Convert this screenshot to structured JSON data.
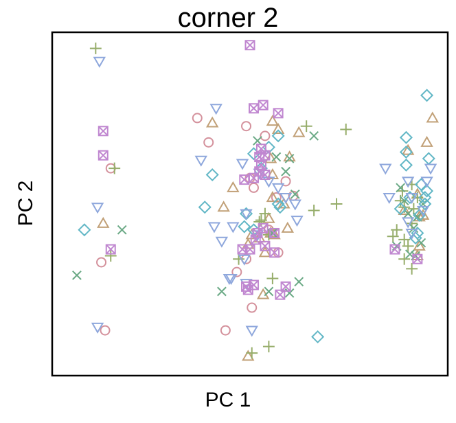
{
  "chart_data": {
    "type": "scatter",
    "title": "corner 2",
    "xlabel": "PC 1",
    "ylabel": "PC 2",
    "xlim": [
      0,
      100
    ],
    "ylim": [
      0,
      100
    ],
    "grid": false,
    "legend": "none",
    "axis_ticks": false,
    "colors": {
      "circle": "#d4919c",
      "triangle": "#c1a077",
      "plus": "#96ad6a",
      "cross": "#6aa985",
      "diamond": "#62b7c6",
      "nabla": "#8ea7dc",
      "boxtimes": "#c087d0"
    },
    "series": [
      {
        "marker": "circle",
        "points": [
          [
            10.5,
            32
          ],
          [
            13,
            61
          ],
          [
            11.5,
            11
          ],
          [
            36,
            76.5
          ],
          [
            39,
            69
          ],
          [
            49,
            74
          ],
          [
            54,
            71
          ],
          [
            50,
            58
          ],
          [
            49,
            33
          ],
          [
            46.5,
            29
          ],
          [
            51,
            55
          ],
          [
            57,
            52
          ],
          [
            55,
            42
          ],
          [
            59.5,
            57
          ],
          [
            61.5,
            52.5
          ],
          [
            57.5,
            35
          ],
          [
            50.5,
            18
          ],
          [
            43.5,
            11
          ]
        ]
      },
      {
        "marker": "triangle",
        "points": [
          [
            11,
            44
          ],
          [
            40,
            75
          ],
          [
            56,
            59
          ],
          [
            55.5,
            64
          ],
          [
            56,
            75.5
          ],
          [
            57.5,
            73
          ],
          [
            63,
            72
          ],
          [
            56,
            52
          ],
          [
            60.5,
            64.5
          ],
          [
            59,
            50
          ],
          [
            55,
            45.5
          ],
          [
            60,
            42.5
          ],
          [
            56,
            41
          ],
          [
            56.5,
            40.5
          ],
          [
            50.5,
            40.5
          ],
          [
            49.5,
            37.5
          ],
          [
            52.5,
            39.5
          ],
          [
            54,
            35
          ],
          [
            55.5,
            41
          ],
          [
            53.5,
            22
          ],
          [
            49.5,
            3
          ],
          [
            45.5,
            55
          ],
          [
            43,
            49
          ],
          [
            92,
            66.5
          ],
          [
            97,
            69
          ],
          [
            98.5,
            76.5
          ],
          [
            94.5,
            53
          ],
          [
            95,
            46
          ],
          [
            95,
            37
          ],
          [
            91,
            48
          ],
          [
            96,
            46.5
          ],
          [
            94.5,
            34
          ]
        ]
      },
      {
        "marker": "plus",
        "points": [
          [
            9,
            98
          ],
          [
            14,
            61
          ],
          [
            13,
            34
          ],
          [
            53,
            45
          ],
          [
            55,
            40.5
          ],
          [
            54,
            47
          ],
          [
            52.5,
            44.5
          ],
          [
            47,
            33
          ],
          [
            56,
            27
          ],
          [
            67,
            48
          ],
          [
            65,
            74
          ],
          [
            75.5,
            73
          ],
          [
            73,
            50
          ],
          [
            90,
            51
          ],
          [
            91,
            49
          ],
          [
            93,
            56
          ],
          [
            94.5,
            52
          ],
          [
            93.5,
            48.5
          ],
          [
            89,
            42
          ],
          [
            91,
            39
          ],
          [
            92,
            37
          ],
          [
            93,
            44
          ],
          [
            91,
            33
          ],
          [
            93,
            30
          ],
          [
            55,
            6
          ],
          [
            50.5,
            4
          ],
          [
            90.5,
            54
          ],
          [
            88,
            40
          ]
        ]
      },
      {
        "marker": "cross",
        "points": [
          [
            16,
            42
          ],
          [
            4,
            28
          ],
          [
            52,
            69.5
          ],
          [
            57,
            64.5
          ],
          [
            59.5,
            60
          ],
          [
            60.5,
            64
          ],
          [
            67,
            71
          ],
          [
            62,
            53
          ],
          [
            56,
            41
          ],
          [
            42.5,
            23
          ],
          [
            60.5,
            22.5
          ],
          [
            55,
            23
          ],
          [
            63,
            26
          ],
          [
            89,
            37
          ],
          [
            91,
            51
          ],
          [
            92,
            47
          ],
          [
            94.5,
            46
          ],
          [
            96,
            50
          ],
          [
            95.5,
            38
          ],
          [
            92.5,
            34.5
          ],
          [
            94,
            34
          ],
          [
            90,
            55
          ],
          [
            93.5,
            42.5
          ]
        ]
      },
      {
        "marker": "diamond",
        "points": [
          [
            6,
            42
          ],
          [
            40,
            59
          ],
          [
            38,
            49
          ],
          [
            53,
            61
          ],
          [
            57.5,
            71
          ],
          [
            51,
            65.5
          ],
          [
            55,
            67.5
          ],
          [
            49,
            47
          ],
          [
            58,
            49
          ],
          [
            48.5,
            43
          ],
          [
            51,
            42
          ],
          [
            57.5,
            50
          ],
          [
            68,
            9
          ],
          [
            97,
            83.5
          ],
          [
            91.5,
            70.5
          ],
          [
            91.5,
            66
          ],
          [
            91.5,
            62
          ],
          [
            97.5,
            64
          ],
          [
            95.5,
            56
          ],
          [
            95,
            46.5
          ],
          [
            90,
            48.5
          ],
          [
            92.5,
            52
          ],
          [
            94,
            39.5
          ],
          [
            96.5,
            52
          ],
          [
            97,
            54
          ],
          [
            96.5,
            50
          ],
          [
            94.5,
            41
          ]
        ]
      },
      {
        "marker": "nabla",
        "points": [
          [
            10,
            94
          ],
          [
            9.5,
            49
          ],
          [
            9.5,
            12
          ],
          [
            41,
            79.5
          ],
          [
            37,
            63.5
          ],
          [
            48,
            62.5
          ],
          [
            49,
            47
          ],
          [
            52.5,
            59.5
          ],
          [
            55,
            57
          ],
          [
            57.5,
            55
          ],
          [
            59.5,
            52
          ],
          [
            62,
            50
          ],
          [
            62.5,
            45
          ],
          [
            40.5,
            43
          ],
          [
            42.5,
            38.5
          ],
          [
            45.5,
            43
          ],
          [
            52,
            40.5
          ],
          [
            45,
            27
          ],
          [
            49,
            25.5
          ],
          [
            50.5,
            11
          ],
          [
            44.5,
            27
          ],
          [
            86,
            61
          ],
          [
            87,
            52
          ],
          [
            92,
            57
          ],
          [
            93,
            52
          ],
          [
            92,
            44.5
          ],
          [
            93,
            41
          ],
          [
            96,
            48
          ],
          [
            97,
            57
          ],
          [
            98,
            61
          ],
          [
            48.5,
            33
          ]
        ]
      },
      {
        "marker": "boxtimes",
        "points": [
          [
            50,
            99
          ],
          [
            11,
            72.5
          ],
          [
            11,
            65
          ],
          [
            13,
            36
          ],
          [
            51,
            79.5
          ],
          [
            53.5,
            80.5
          ],
          [
            57.5,
            78
          ],
          [
            53,
            67
          ],
          [
            52.5,
            64.5
          ],
          [
            54,
            65
          ],
          [
            53,
            62
          ],
          [
            48.5,
            57.5
          ],
          [
            51,
            58
          ],
          [
            54,
            59
          ],
          [
            52.5,
            60
          ],
          [
            53.5,
            42.5
          ],
          [
            52,
            41
          ],
          [
            56.5,
            41
          ],
          [
            56.5,
            35
          ],
          [
            51.5,
            39
          ],
          [
            50,
            36
          ],
          [
            54,
            37
          ],
          [
            48,
            36
          ],
          [
            51,
            25
          ],
          [
            49,
            24.5
          ],
          [
            59.5,
            24.5
          ],
          [
            58,
            22
          ],
          [
            49.5,
            23.5
          ],
          [
            88.5,
            36
          ],
          [
            94.5,
            33
          ]
        ]
      }
    ]
  }
}
